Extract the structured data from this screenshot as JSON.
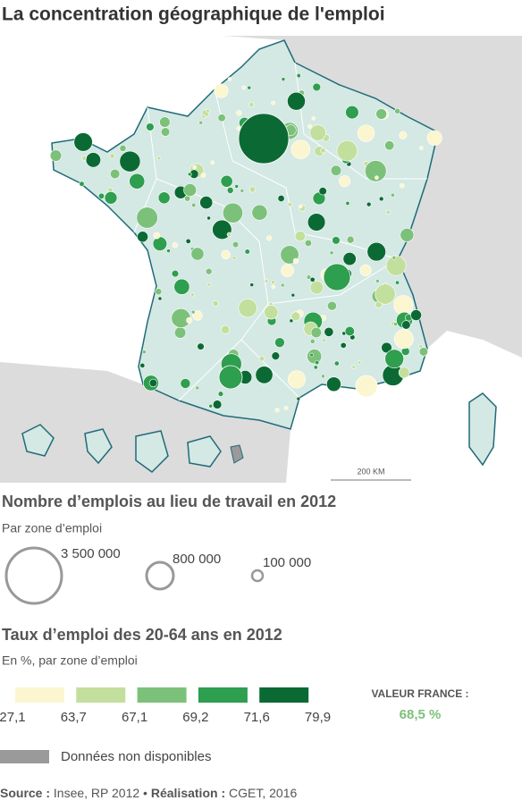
{
  "title": "La concentration géographique de l'emploi",
  "map": {
    "scale_label": "200 KM"
  },
  "legend_size": {
    "title": "Nombre d’emplois au lieu de travail en 2012",
    "subtitle": "Par zone d’emploi",
    "items": [
      "3 500 000",
      "800 000",
      "100 000"
    ]
  },
  "legend_rate": {
    "title": "Taux d’emploi des 20-64 ans en 2012",
    "subtitle": "En %, par zone d’emploi",
    "breaks": [
      "27,1",
      "63,7",
      "67,1",
      "69,2",
      "71,6",
      "79,9"
    ],
    "colors": [
      "#fbf6cf",
      "#c3df9d",
      "#7cc17a",
      "#2e9e4f",
      "#0b6a33"
    ],
    "france_label": "VALEUR FRANCE :",
    "france_value": "68,5 %"
  },
  "no_data": {
    "label": "Données non disponibles",
    "color": "#9a9a9a"
  },
  "source": {
    "label1": "Source :",
    "text1": "Insee, RP 2012 •",
    "label2": "Réalisation :",
    "text2": "CGET, 2016"
  }
}
